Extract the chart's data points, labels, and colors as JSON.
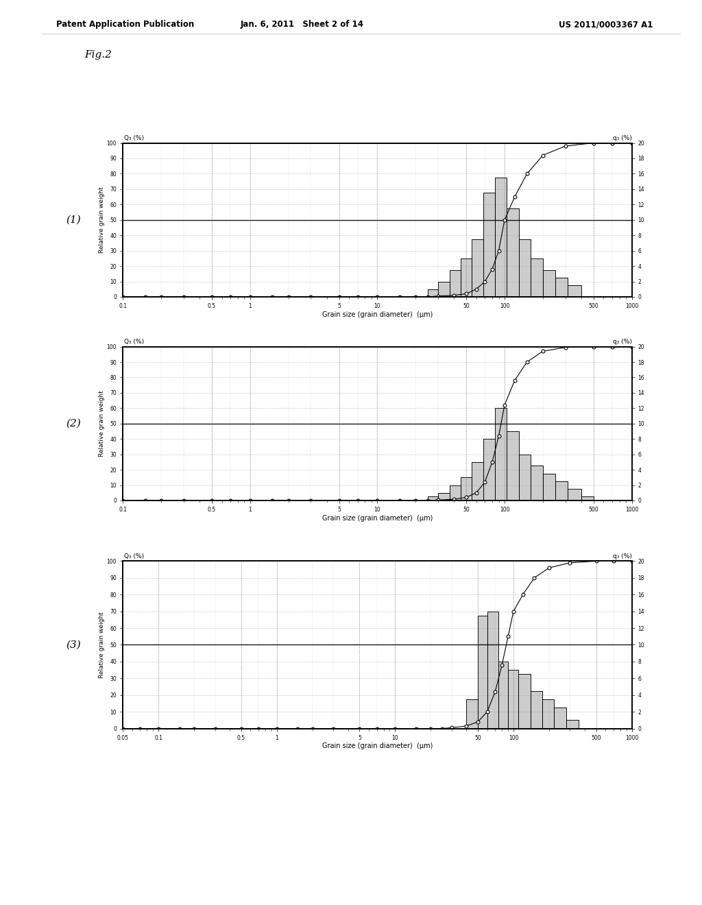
{
  "fig_label": "Fig.2",
  "header_left": "Patent Application Publication",
  "header_center": "Jan. 6, 2011   Sheet 2 of 14",
  "header_right": "US 2011/0003367 A1",
  "bg_color": "#ffffff",
  "plots": [
    {
      "label": "(1)",
      "xmin": 0.1,
      "xmax": 1000,
      "xtick_vals": [
        0.1,
        0.5,
        1,
        5,
        10,
        50,
        100,
        500,
        1000
      ],
      "xtick_labels": [
        "0.1",
        "0.5",
        "1",
        "5",
        "10",
        "50",
        "100",
        "500",
        "1000"
      ],
      "cumulative_x": [
        0.1,
        0.15,
        0.2,
        0.3,
        0.5,
        0.7,
        1,
        1.5,
        2,
        3,
        5,
        7,
        10,
        15,
        20,
        25,
        30,
        40,
        50,
        60,
        70,
        80,
        90,
        100,
        120,
        150,
        200,
        300,
        500,
        700,
        1000
      ],
      "cumulative_y": [
        0,
        0,
        0,
        0,
        0,
        0,
        0,
        0,
        0,
        0,
        0,
        0,
        0,
        0,
        0,
        0,
        0.5,
        1,
        2,
        5,
        10,
        18,
        30,
        50,
        65,
        80,
        92,
        98,
        100,
        100,
        100
      ],
      "bar_lefts": [
        25,
        30,
        37,
        45,
        55,
        68,
        84,
        104,
        130,
        160,
        200,
        250,
        315
      ],
      "bar_rights": [
        30,
        37,
        45,
        55,
        68,
        84,
        104,
        130,
        160,
        200,
        250,
        315,
        400
      ],
      "bar_heights": [
        1.0,
        2.0,
        3.5,
        5.0,
        7.5,
        13.5,
        15.5,
        11.5,
        7.5,
        5.0,
        3.5,
        2.5,
        1.5
      ]
    },
    {
      "label": "(2)",
      "xmin": 0.1,
      "xmax": 1000,
      "xtick_vals": [
        0.1,
        0.5,
        1,
        5,
        10,
        50,
        100,
        500,
        1000
      ],
      "xtick_labels": [
        "0.1",
        "0.5",
        "1",
        "5",
        "10",
        "50",
        "100",
        "500",
        "1000"
      ],
      "cumulative_x": [
        0.1,
        0.15,
        0.2,
        0.3,
        0.5,
        0.7,
        1,
        1.5,
        2,
        3,
        5,
        7,
        10,
        15,
        20,
        25,
        30,
        40,
        50,
        60,
        70,
        80,
        90,
        100,
        120,
        150,
        200,
        300,
        500,
        700,
        1000
      ],
      "cumulative_y": [
        0,
        0,
        0,
        0,
        0,
        0,
        0,
        0,
        0,
        0,
        0,
        0,
        0,
        0,
        0,
        0,
        0.3,
        0.8,
        2,
        5,
        12,
        25,
        42,
        62,
        78,
        90,
        97,
        99.5,
        100,
        100,
        100
      ],
      "bar_lefts": [
        25,
        30,
        37,
        45,
        55,
        68,
        84,
        104,
        130,
        160,
        200,
        250,
        315,
        400
      ],
      "bar_rights": [
        30,
        37,
        45,
        55,
        68,
        84,
        104,
        130,
        160,
        200,
        250,
        315,
        400,
        500
      ],
      "bar_heights": [
        0.5,
        1.0,
        2.0,
        3.0,
        5.0,
        8.0,
        12.0,
        9.0,
        6.0,
        4.5,
        3.5,
        2.5,
        1.5,
        0.5
      ]
    },
    {
      "label": "(3)",
      "xmin": 0.05,
      "xmax": 1000,
      "xtick_vals": [
        0.05,
        0.1,
        0.5,
        1,
        5,
        10,
        50,
        100,
        500,
        1000
      ],
      "xtick_labels": [
        "0.05",
        "0.1",
        "0.5",
        "1",
        "5",
        "10",
        "50",
        "100",
        "500",
        "1000"
      ],
      "cumulative_x": [
        0.05,
        0.07,
        0.1,
        0.15,
        0.2,
        0.3,
        0.5,
        0.7,
        1,
        1.5,
        2,
        3,
        5,
        7,
        10,
        15,
        20,
        25,
        30,
        40,
        50,
        60,
        70,
        80,
        90,
        100,
        120,
        150,
        200,
        300,
        500,
        700,
        1000
      ],
      "cumulative_y": [
        0,
        0,
        0,
        0,
        0,
        0,
        0,
        0,
        0,
        0,
        0,
        0,
        0,
        0,
        0,
        0,
        0,
        0,
        0.5,
        1.5,
        4,
        10,
        22,
        38,
        55,
        70,
        80,
        90,
        96,
        99,
        100,
        100,
        100
      ],
      "bar_lefts": [
        40,
        50,
        60,
        75,
        90,
        110,
        140,
        175,
        220,
        280
      ],
      "bar_rights": [
        50,
        60,
        75,
        90,
        110,
        140,
        175,
        220,
        280,
        355
      ],
      "bar_heights": [
        3.5,
        13.5,
        14.0,
        8.0,
        7.0,
        6.5,
        4.5,
        3.5,
        2.5,
        1.0
      ]
    }
  ]
}
